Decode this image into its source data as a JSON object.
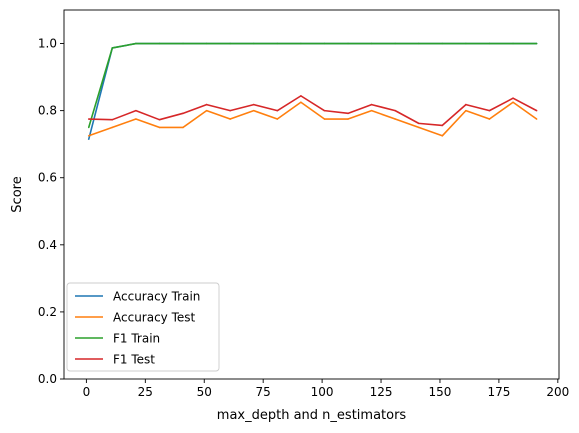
{
  "chart_data": {
    "type": "line",
    "xlabel": "max_depth and n_estimators",
    "ylabel": "Score",
    "xlim": [
      -9.5,
      200.5
    ],
    "ylim": [
      0.0,
      1.1
    ],
    "x_ticks": [
      0,
      25,
      50,
      75,
      100,
      125,
      150,
      175,
      200
    ],
    "y_ticks": [
      0.0,
      0.2,
      0.4,
      0.6,
      0.8,
      1.0
    ],
    "x_tick_labels": [
      "0",
      "25",
      "50",
      "75",
      "100",
      "125",
      "150",
      "175",
      "200"
    ],
    "y_tick_labels": [
      "0.0",
      "0.2",
      "0.4",
      "0.6",
      "0.8",
      "1.0"
    ],
    "legend_position": "lower-left",
    "x": [
      1,
      11,
      21,
      31,
      41,
      51,
      61,
      71,
      81,
      91,
      101,
      111,
      121,
      131,
      141,
      151,
      161,
      171,
      181,
      191
    ],
    "series": [
      {
        "name": "Accuracy Train",
        "color": "#1f77b4",
        "values": [
          0.715,
          0.987,
          1.0,
          1.0,
          1.0,
          1.0,
          1.0,
          1.0,
          1.0,
          1.0,
          1.0,
          1.0,
          1.0,
          1.0,
          1.0,
          1.0,
          1.0,
          1.0,
          1.0,
          1.0
        ]
      },
      {
        "name": "Accuracy Test",
        "color": "#ff7f0e",
        "values": [
          0.725,
          0.75,
          0.775,
          0.75,
          0.75,
          0.8,
          0.775,
          0.8,
          0.775,
          0.825,
          0.775,
          0.775,
          0.8,
          0.775,
          0.75,
          0.725,
          0.8,
          0.775,
          0.825,
          0.775
        ]
      },
      {
        "name": "F1 Train",
        "color": "#2ca02c",
        "values": [
          0.75,
          0.987,
          1.0,
          1.0,
          1.0,
          1.0,
          1.0,
          1.0,
          1.0,
          1.0,
          1.0,
          1.0,
          1.0,
          1.0,
          1.0,
          1.0,
          1.0,
          1.0,
          1.0,
          1.0
        ]
      },
      {
        "name": "F1 Test",
        "color": "#d62728",
        "values": [
          0.775,
          0.773,
          0.8,
          0.773,
          0.792,
          0.818,
          0.8,
          0.818,
          0.8,
          0.844,
          0.8,
          0.792,
          0.818,
          0.8,
          0.762,
          0.756,
          0.818,
          0.8,
          0.837,
          0.8
        ]
      }
    ]
  }
}
